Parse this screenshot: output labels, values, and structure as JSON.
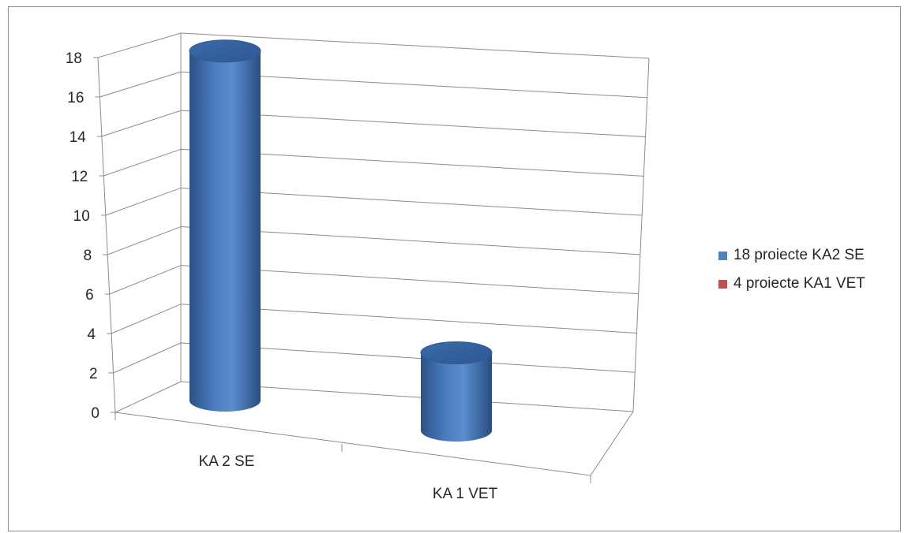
{
  "chart_data": {
    "type": "bar",
    "style": "3d-cylinder",
    "categories": [
      "KA 2 SE",
      "KA 1 VET"
    ],
    "series": [
      {
        "name": "18 proiecte KA2 SE",
        "color": "#4f81bd",
        "values": [
          18,
          4
        ]
      },
      {
        "name": "4 proiecte KA1 VET",
        "color": "#c0504d",
        "values": [
          null,
          null
        ]
      }
    ],
    "ylim": [
      0,
      18
    ],
    "yticks": [
      "0",
      "2",
      "4",
      "6",
      "8",
      "10",
      "12",
      "14",
      "16",
      "18"
    ],
    "grid": true,
    "legend_position": "right",
    "title": "",
    "xlabel": "",
    "ylabel": ""
  }
}
